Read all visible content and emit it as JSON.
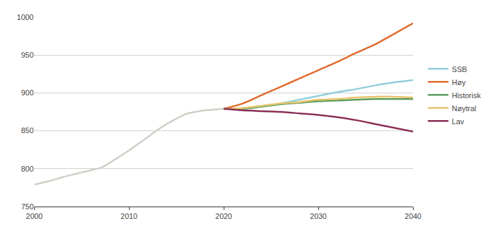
{
  "chart_data": {
    "type": "line",
    "xlim": [
      2000,
      2040
    ],
    "xticks": [
      2000,
      2010,
      2020,
      2030,
      2040
    ],
    "ylim": [
      750,
      1000
    ],
    "yticks": [
      750,
      800,
      850,
      900,
      950,
      1000
    ],
    "grid": true,
    "legend": "right",
    "series": [
      {
        "color": "#cfcfc7",
        "x": [
          2000,
          2001,
          2002,
          2003,
          2004,
          2005,
          2006,
          2007,
          2008,
          2009,
          2010,
          2011,
          2012,
          2013,
          2014,
          2015,
          2016,
          2017,
          2018,
          2019,
          2020
        ],
        "values": [
          779,
          782,
          785,
          789,
          792,
          795,
          798,
          801,
          808,
          816,
          824,
          833,
          842,
          851,
          859,
          866,
          872,
          875,
          877,
          878,
          879
        ]
      },
      {
        "name": "SSB",
        "color": "#92cddb",
        "x": [
          2020,
          2022,
          2024,
          2026,
          2028,
          2030,
          2032,
          2034,
          2036,
          2038,
          2040
        ],
        "values": [
          879,
          879,
          882,
          886,
          891,
          896,
          901,
          905,
          910,
          914,
          917
        ]
      },
      {
        "name": "Høy",
        "color": "#e06a2c",
        "x": [
          2020,
          2022,
          2024,
          2026,
          2028,
          2030,
          2032,
          2034,
          2036,
          2038,
          2040
        ],
        "values": [
          879,
          886,
          897,
          908,
          919,
          930,
          941,
          953,
          964,
          978,
          992
        ]
      },
      {
        "name": "Historisk",
        "color": "#5b9c5c",
        "x": [
          2020,
          2022,
          2024,
          2026,
          2028,
          2030,
          2032,
          2034,
          2036,
          2038,
          2040
        ],
        "values": [
          879,
          879,
          882,
          885,
          887,
          889,
          890,
          891,
          892,
          892,
          892
        ]
      },
      {
        "name": "Nøytral",
        "color": "#e8c46a",
        "x": [
          2020,
          2022,
          2024,
          2026,
          2028,
          2030,
          2032,
          2034,
          2036,
          2038,
          2040
        ],
        "values": [
          879,
          880,
          883,
          886,
          888,
          891,
          892,
          894,
          895,
          895,
          894
        ]
      },
      {
        "name": "Lav",
        "color": "#8a2d55",
        "x": [
          2020,
          2022,
          2024,
          2026,
          2028,
          2030,
          2032,
          2034,
          2036,
          2038,
          2040
        ],
        "values": [
          879,
          877,
          876,
          875,
          873,
          871,
          868,
          864,
          859,
          854,
          849
        ]
      }
    ]
  }
}
